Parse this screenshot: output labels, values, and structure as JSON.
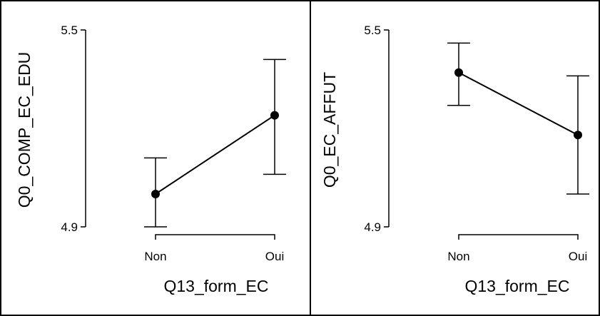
{
  "chart_data": [
    {
      "type": "line",
      "categories": [
        "Non",
        "Oui"
      ],
      "values": [
        5.0,
        5.24
      ],
      "error_low": [
        4.9,
        5.06
      ],
      "error_high": [
        5.11,
        5.41
      ],
      "xlabel": "Q13_form_EC",
      "ylabel": "Q0_COMP_EC_EDU",
      "ylim": [
        4.9,
        5.5
      ],
      "yticks": [
        "4.9",
        "5.5"
      ],
      "grid": false
    },
    {
      "type": "line",
      "categories": [
        "Non",
        "Oui"
      ],
      "values": [
        5.37,
        5.18
      ],
      "error_low": [
        5.27,
        5.0
      ],
      "error_high": [
        5.46,
        5.36
      ],
      "xlabel": "Q13_form_EC",
      "ylabel": "Q0_EC_AFFUT",
      "ylim": [
        4.9,
        5.5
      ],
      "yticks": [
        "4.9",
        "5.5"
      ],
      "grid": false
    }
  ]
}
